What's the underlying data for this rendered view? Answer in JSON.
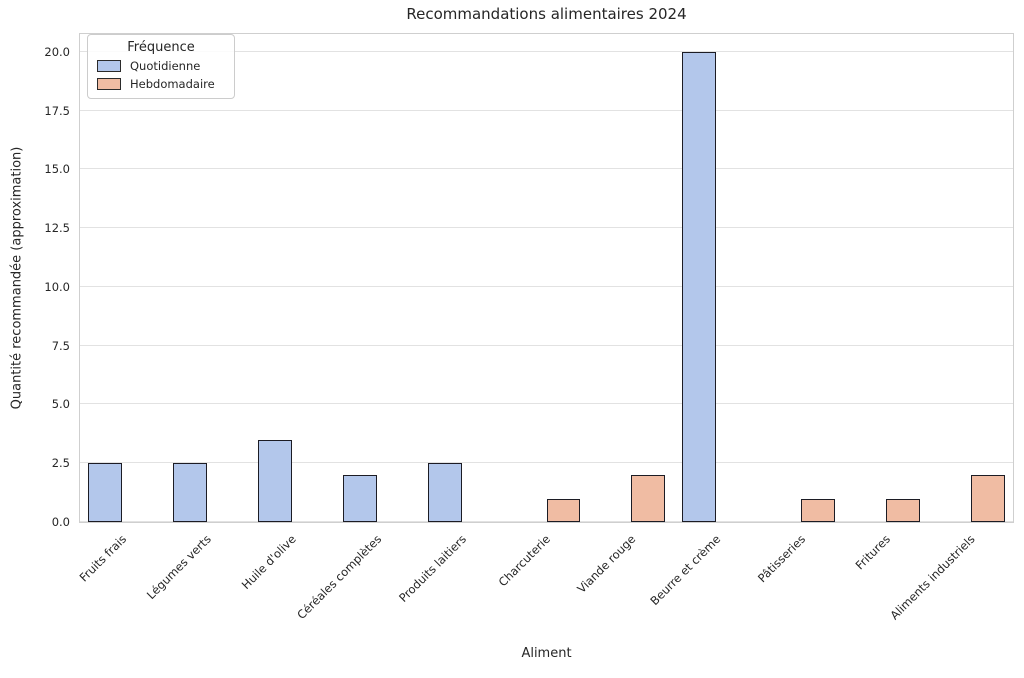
{
  "chart_data": {
    "type": "bar",
    "title": "Recommandations alimentaires 2024",
    "xlabel": "Aliment",
    "ylabel": "Quantité recommandée (approximation)",
    "categories": [
      "Fruits frais",
      "Légumes verts",
      "Huile d'olive",
      "Céréales complètes",
      "Produits laitiers",
      "Charcuterie",
      "Viande rouge",
      "Beurre et crème",
      "Pâtisseries",
      "Fritures",
      "Aliments industriels"
    ],
    "series": [
      {
        "name": "Quotidienne",
        "color": "#b3c7eb",
        "values": [
          2.5,
          2.5,
          3.5,
          2.0,
          2.5,
          null,
          null,
          20.0,
          null,
          null,
          null
        ]
      },
      {
        "name": "Hebdomadaire",
        "color": "#f0bca3",
        "values": [
          null,
          null,
          null,
          null,
          null,
          1.0,
          2.0,
          null,
          1.0,
          1.0,
          2.0
        ]
      }
    ],
    "yticks": [
      0.0,
      2.5,
      5.0,
      7.5,
      10.0,
      12.5,
      15.0,
      17.5,
      20.0
    ],
    "ylim": [
      0,
      20.76
    ],
    "grid": "horizontal",
    "legend": {
      "title": "Fréquence",
      "position": "upper-left",
      "entries": [
        {
          "label": "Quotidienne",
          "color": "#b3c7eb"
        },
        {
          "label": "Hebdomadaire",
          "color": "#f0bca3"
        }
      ]
    },
    "bar_edge_color": "#1c1c24",
    "colors": {
      "grid": "#e2e2e2",
      "spine": "#cfcfcf",
      "text": "#262626"
    }
  }
}
